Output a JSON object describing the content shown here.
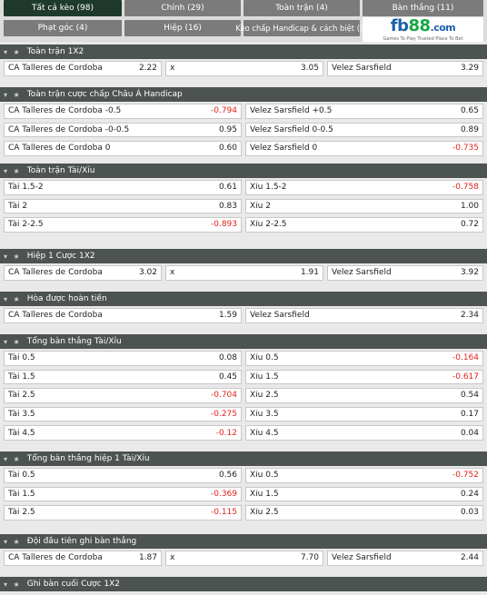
{
  "tabs": [
    {
      "label": "Tất cả kèo (98)",
      "active": true
    },
    {
      "label": "Chính (29)",
      "active": false
    },
    {
      "label": "Toàn trận (4)",
      "active": false
    },
    {
      "label": "Bàn thắng (11)",
      "active": false
    },
    {
      "label": "Phạt góc (4)",
      "active": false
    },
    {
      "label": "Hiệp (16)",
      "active": false
    },
    {
      "label": "Kèo chấp Handicap & cách biệt (3)",
      "active": false
    }
  ],
  "logo": {
    "fb": "fb",
    "n88": "88",
    "com": ".com",
    "tagline": "Games To Play  Trusted Place To Bet"
  },
  "sections": [
    {
      "title": "Toàn trận 1X2",
      "cols": 3,
      "rows": [
        [
          {
            "label": "CA Talleres de Cordoba",
            "odd": "2.22"
          },
          {
            "label": "x",
            "odd": "3.05"
          },
          {
            "label": "Velez Sarsfield",
            "odd": "3.29"
          }
        ]
      ]
    },
    {
      "title": "Toàn trận cược chấp Châu Á Handicap",
      "cols": 2,
      "rows": [
        [
          {
            "label": "CA Talleres de Cordoba -0.5",
            "odd": "-0.794"
          },
          {
            "label": "Velez Sarsfield +0.5",
            "odd": "0.65"
          }
        ],
        [
          {
            "label": "CA Talleres de Cordoba -0-0.5",
            "odd": "0.95"
          },
          {
            "label": "Velez Sarsfield 0-0.5",
            "odd": "0.89"
          }
        ],
        [
          {
            "label": "CA Talleres de Cordoba 0",
            "odd": "0.60"
          },
          {
            "label": "Velez Sarsfield 0",
            "odd": "-0.735"
          }
        ]
      ]
    },
    {
      "title": "Toàn trận Tài/Xỉu",
      "cols": 2,
      "rows": [
        [
          {
            "label": "Tài 1.5-2",
            "odd": "0.61"
          },
          {
            "label": "Xỉu 1.5-2",
            "odd": "-0.758"
          }
        ],
        [
          {
            "label": "Tài 2",
            "odd": "0.83"
          },
          {
            "label": "Xỉu 2",
            "odd": "1.00"
          }
        ],
        [
          {
            "label": "Tài 2-2.5",
            "odd": "-0.893"
          },
          {
            "label": "Xỉu 2-2.5",
            "odd": "0.72"
          }
        ]
      ]
    },
    {
      "title": "Hiệp 1 Cược 1X2",
      "cols": 3,
      "rows": [
        [
          {
            "label": "CA Talleres de Cordoba",
            "odd": "3.02"
          },
          {
            "label": "x",
            "odd": "1.91"
          },
          {
            "label": "Velez Sarsfield",
            "odd": "3.92"
          }
        ]
      ]
    },
    {
      "title": "Hòa được hoàn tiền",
      "cols": 2,
      "rows": [
        [
          {
            "label": "CA Talleres de Cordoba",
            "odd": "1.59"
          },
          {
            "label": "Velez Sarsfield",
            "odd": "2.34"
          }
        ]
      ]
    },
    {
      "title": "Tổng bàn thắng Tài/Xỉu",
      "cols": 2,
      "rows": [
        [
          {
            "label": "Tài 0.5",
            "odd": "0.08"
          },
          {
            "label": "Xỉu 0.5",
            "odd": "-0.164"
          }
        ],
        [
          {
            "label": "Tài 1.5",
            "odd": "0.45"
          },
          {
            "label": "Xỉu 1.5",
            "odd": "-0.617"
          }
        ],
        [
          {
            "label": "Tài 2.5",
            "odd": "-0.704"
          },
          {
            "label": "Xỉu 2.5",
            "odd": "0.54"
          }
        ],
        [
          {
            "label": "Tài 3.5",
            "odd": "-0.275"
          },
          {
            "label": "Xỉu 3.5",
            "odd": "0.17"
          }
        ],
        [
          {
            "label": "Tài 4.5",
            "odd": "-0.12"
          },
          {
            "label": "Xỉu 4.5",
            "odd": "0.04"
          }
        ]
      ]
    },
    {
      "title": "Tổng bàn thắng hiệp 1 Tài/Xỉu",
      "cols": 2,
      "rows": [
        [
          {
            "label": "Tài 0.5",
            "odd": "0.56"
          },
          {
            "label": "Xỉu 0.5",
            "odd": "-0.752"
          }
        ],
        [
          {
            "label": "Tài 1.5",
            "odd": "-0.369"
          },
          {
            "label": "Xỉu 1.5",
            "odd": "0.24"
          }
        ],
        [
          {
            "label": "Tài 2.5",
            "odd": "-0.115"
          },
          {
            "label": "Xỉu 2.5",
            "odd": "0.03"
          }
        ]
      ]
    },
    {
      "title": "Đội đầu tiên ghi bàn thắng",
      "cols": 3,
      "rows": [
        [
          {
            "label": "CA Talleres de Cordoba",
            "odd": "1.87"
          },
          {
            "label": "x",
            "odd": "7.70"
          },
          {
            "label": "Velez Sarsfield",
            "odd": "2.44"
          }
        ]
      ]
    },
    {
      "title": "Ghi bàn cuối Cược 1X2",
      "cols": 3,
      "rows": []
    }
  ]
}
